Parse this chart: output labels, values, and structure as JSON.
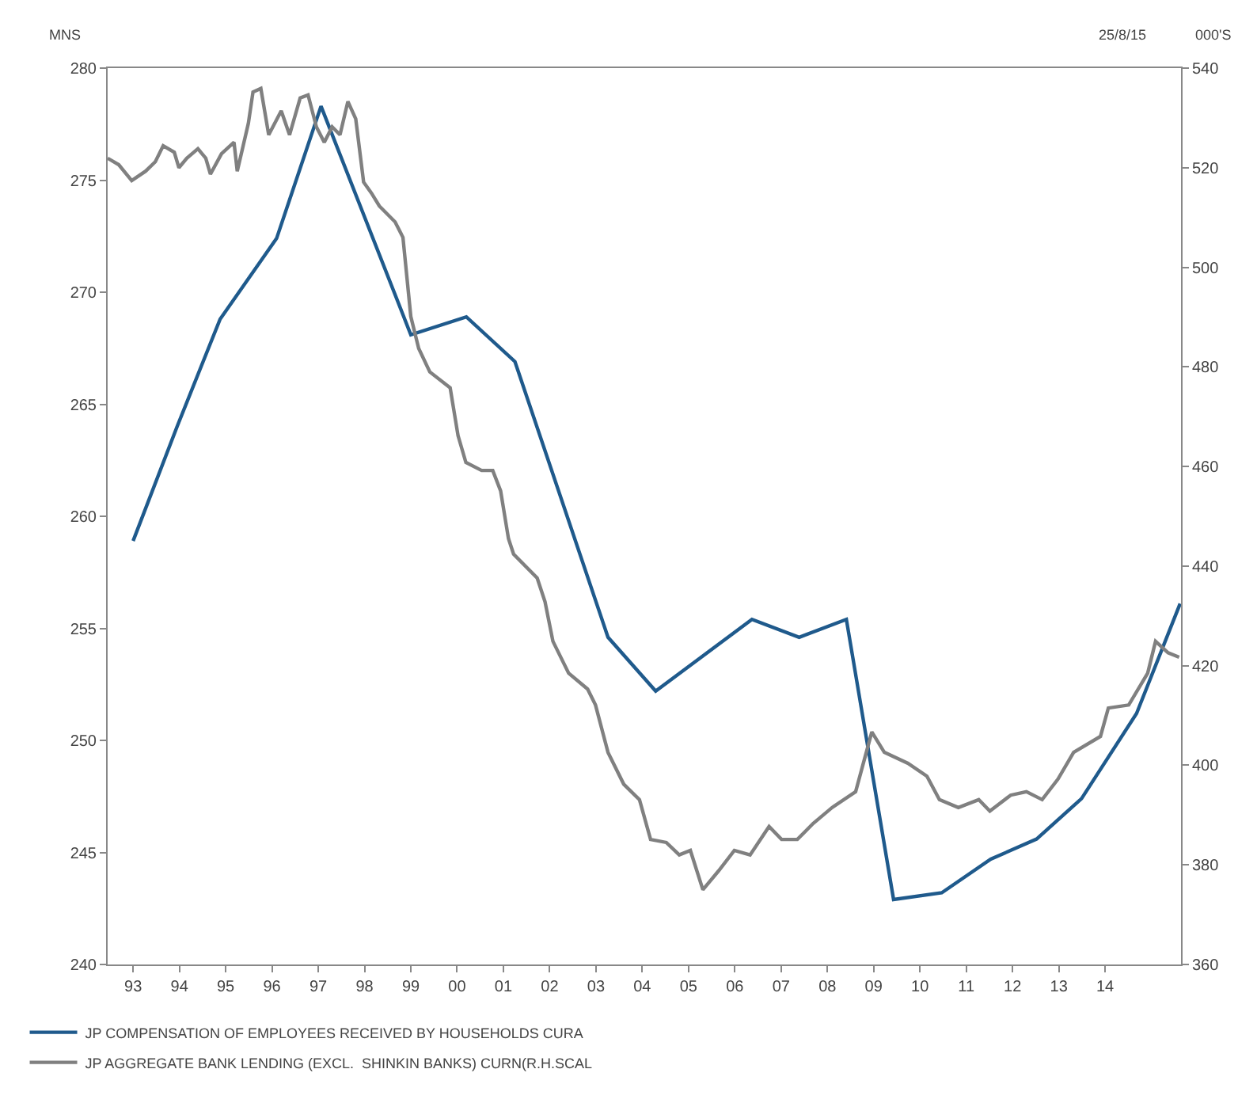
{
  "chart_data": {
    "type": "line",
    "ylabel": "MNS",
    "y2label": "000'S",
    "annotations": [
      "25/8/15"
    ],
    "xlim": [
      1992.45,
      2015.64
    ],
    "xticks": [
      {
        "value": 1993,
        "label": "93"
      },
      {
        "value": 1994,
        "label": "94"
      },
      {
        "value": 1995,
        "label": "95"
      },
      {
        "value": 1996,
        "label": "96"
      },
      {
        "value": 1997,
        "label": "97"
      },
      {
        "value": 1998,
        "label": "98"
      },
      {
        "value": 1999,
        "label": "99"
      },
      {
        "value": 2000,
        "label": "00"
      },
      {
        "value": 2001,
        "label": "01"
      },
      {
        "value": 2002,
        "label": "02"
      },
      {
        "value": 2003,
        "label": "03"
      },
      {
        "value": 2004,
        "label": "04"
      },
      {
        "value": 2005,
        "label": "05"
      },
      {
        "value": 2006,
        "label": "06"
      },
      {
        "value": 2007,
        "label": "07"
      },
      {
        "value": 2008,
        "label": "08"
      },
      {
        "value": 2009,
        "label": "09"
      },
      {
        "value": 2010,
        "label": "10"
      },
      {
        "value": 2011,
        "label": "11"
      },
      {
        "value": 2012,
        "label": "12"
      },
      {
        "value": 2013,
        "label": "13"
      },
      {
        "value": 2014,
        "label": "14"
      }
    ],
    "ylim": [
      240,
      280
    ],
    "yticks": [
      240,
      245,
      250,
      255,
      260,
      265,
      270,
      275,
      280
    ],
    "y2lim": [
      360,
      540
    ],
    "y2ticks": [
      360,
      380,
      400,
      420,
      440,
      460,
      480,
      500,
      520,
      540
    ],
    "legend": "bottom left",
    "marker": "none",
    "line_style": "solid",
    "series": [
      {
        "name": "JP COMPENSATION OF EMPLOYEES RECEIVED BY HOUSEHOLDS CURA",
        "color": "#1f5a8c",
        "x": [
          1993.0,
          1993.95,
          1994.88,
          1996.1,
          1997.06,
          1999.0,
          2000.2,
          2001.25,
          2003.26,
          2004.29,
          2006.37,
          2007.39,
          2008.41,
          2009.43,
          2010.47,
          2011.53,
          2012.52,
          2013.49,
          2014.68,
          2015.62
        ],
        "values": [
          258.9,
          264.0,
          268.8,
          272.4,
          278.3,
          268.1,
          268.9,
          266.9,
          254.6,
          252.2,
          255.4,
          254.6,
          255.4,
          242.9,
          243.2,
          244.7,
          245.6,
          247.4,
          251.2,
          256.1
        ]
      },
      {
        "name": "JP AGGREGATE BANK LENDING (EXCL.  SHINKIN BANKS) CURN(R.H.SCAL",
        "color": "#808080",
        "axis": "y2",
        "x": [
          1992.45,
          1992.69,
          1992.97,
          1993.27,
          1993.48,
          1993.65,
          1993.89,
          1993.99,
          1994.16,
          1994.4,
          1994.57,
          1994.67,
          1994.91,
          1995.18,
          1995.25,
          1995.49,
          1995.59,
          1995.76,
          1995.93,
          1996.2,
          1996.38,
          1996.61,
          1996.78,
          1996.96,
          1997.13,
          1997.3,
          1997.47,
          1997.64,
          1997.81,
          1997.98,
          1998.15,
          1998.32,
          1998.66,
          1998.83,
          1999.0,
          1999.17,
          1999.41,
          1999.85,
          2000.02,
          2000.19,
          2000.53,
          2000.77,
          2000.94,
          2001.11,
          2001.22,
          2001.73,
          2001.9,
          2002.07,
          2002.41,
          2002.82,
          2002.99,
          2003.26,
          2003.6,
          2003.94,
          2004.18,
          2004.52,
          2004.8,
          2005.04,
          2005.31,
          2005.65,
          2005.99,
          2006.33,
          2006.74,
          2007.01,
          2007.35,
          2007.69,
          2008.1,
          2008.61,
          2008.96,
          2009.23,
          2009.74,
          2010.15,
          2010.42,
          2010.83,
          2011.27,
          2011.51,
          2011.96,
          2012.3,
          2012.64,
          2012.98,
          2013.32,
          2013.9,
          2014.07,
          2014.51,
          2014.92,
          2015.09,
          2015.36,
          2015.6
        ],
        "values": [
          521.9,
          520.6,
          517.4,
          519.3,
          521.2,
          524.4,
          523.1,
          520.0,
          521.9,
          523.8,
          521.9,
          518.7,
          522.8,
          525.1,
          519.3,
          528.9,
          535.2,
          535.9,
          526.6,
          531.4,
          526.6,
          534.0,
          534.6,
          528.2,
          525.1,
          528.2,
          526.6,
          533.3,
          529.8,
          517.1,
          514.9,
          512.3,
          509.1,
          506.0,
          490.1,
          483.7,
          479.0,
          475.8,
          466.2,
          460.8,
          459.2,
          459.2,
          455.1,
          445.5,
          442.4,
          437.6,
          432.8,
          424.9,
          418.5,
          415.3,
          412.1,
          402.6,
          396.2,
          393.1,
          385.1,
          384.5,
          382.0,
          382.9,
          375.0,
          378.8,
          382.9,
          382.0,
          387.7,
          385.1,
          385.1,
          388.3,
          391.5,
          394.7,
          406.7,
          402.6,
          400.4,
          397.8,
          393.1,
          391.5,
          393.1,
          390.8,
          394.0,
          394.7,
          393.1,
          397.2,
          402.6,
          405.8,
          411.5,
          412.1,
          418.5,
          424.9,
          422.6,
          421.7
        ]
      }
    ]
  }
}
